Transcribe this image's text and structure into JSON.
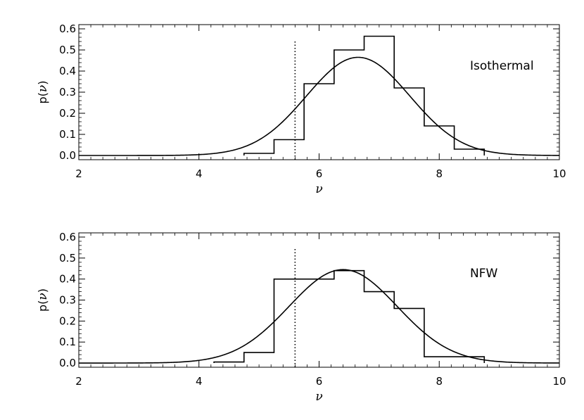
{
  "chart_data": [
    {
      "type": "line",
      "panel": "top",
      "annotation": "Isothermal",
      "xlabel": "ν",
      "ylabel_prefix": "p(",
      "ylabel_var": "ν",
      "ylabel_suffix": ")",
      "xlim": [
        2,
        10
      ],
      "ylim": [
        -0.02,
        0.62
      ],
      "xticks": [
        2,
        4,
        6,
        8,
        10
      ],
      "xtick_labels": [
        "2",
        "4",
        "6",
        "8",
        "10"
      ],
      "yticks": [
        0.0,
        0.1,
        0.2,
        0.3,
        0.4,
        0.5,
        0.6
      ],
      "ytick_labels": [
        "0.0",
        "0.1",
        "0.2",
        "0.3",
        "0.4",
        "0.5",
        "0.6"
      ],
      "grid": false,
      "histogram": {
        "bin_edges": [
          4.75,
          5.25,
          5.75,
          6.25,
          6.75,
          7.25,
          7.75,
          8.25,
          8.75
        ],
        "values": [
          0.01,
          0.075,
          0.34,
          0.5,
          0.565,
          0.32,
          0.14,
          0.03
        ]
      },
      "gaussian_fit": {
        "mean": 6.65,
        "sigma": 0.86,
        "peak": 0.465
      },
      "vline": {
        "x": 5.6,
        "top": 0.55,
        "style": "dotted"
      }
    },
    {
      "type": "line",
      "panel": "bottom",
      "annotation": "NFW",
      "xlabel": "ν",
      "ylabel_prefix": "p(",
      "ylabel_var": "ν",
      "ylabel_suffix": ")",
      "xlim": [
        2,
        10
      ],
      "ylim": [
        -0.02,
        0.62
      ],
      "xticks": [
        2,
        4,
        6,
        8,
        10
      ],
      "xtick_labels": [
        "2",
        "4",
        "6",
        "8",
        "10"
      ],
      "yticks": [
        0.0,
        0.1,
        0.2,
        0.3,
        0.4,
        0.5,
        0.6
      ],
      "ytick_labels": [
        "0.0",
        "0.1",
        "0.2",
        "0.3",
        "0.4",
        "0.5",
        "0.6"
      ],
      "grid": false,
      "histogram": {
        "bin_edges": [
          4.25,
          4.75,
          5.25,
          5.75,
          6.25,
          6.75,
          7.25,
          7.75,
          8.25,
          8.75
        ],
        "values": [
          0.005,
          0.05,
          0.4,
          0.4,
          0.44,
          0.34,
          0.26,
          0.03,
          0.03
        ]
      },
      "gaussian_fit": {
        "mean": 6.4,
        "sigma": 0.9,
        "peak": 0.445
      },
      "vline": {
        "x": 5.6,
        "top": 0.55,
        "style": "dotted"
      }
    }
  ]
}
